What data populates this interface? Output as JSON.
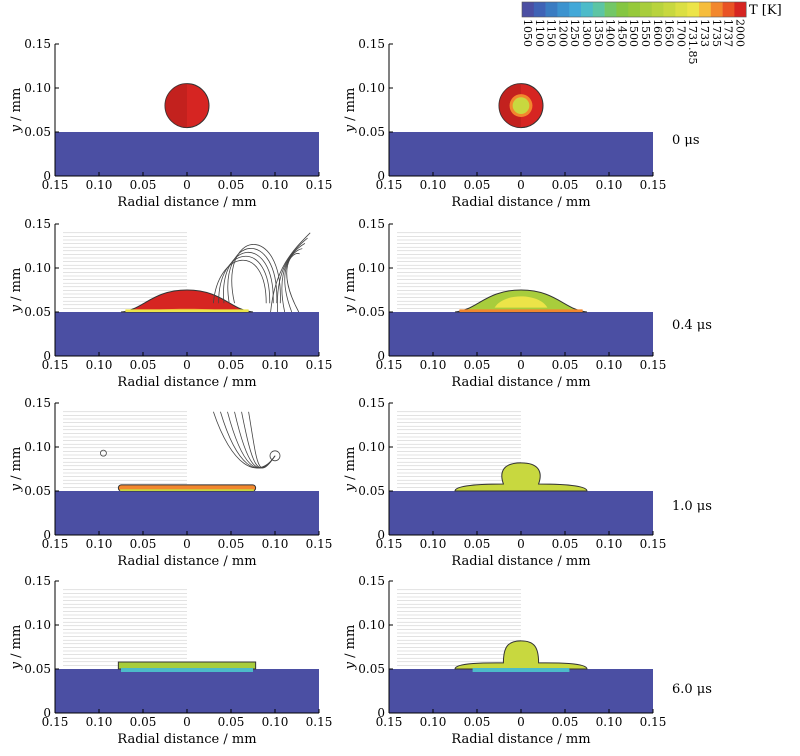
{
  "colorbar": {
    "label": "T [K]",
    "ticks": [
      "1050",
      "1100",
      "1150",
      "1200",
      "1250",
      "1300",
      "1350",
      "1400",
      "1450",
      "1500",
      "1550",
      "1600",
      "1650",
      "1700",
      "1731.85",
      "1733",
      "1735",
      "1737",
      "2000"
    ],
    "colors": [
      "#4b4fa3",
      "#3f63b6",
      "#3a7cc2",
      "#3c93cf",
      "#42a8d8",
      "#4cbbc9",
      "#5cc5a4",
      "#73c766",
      "#85c641",
      "#96c93a",
      "#a8cd3c",
      "#b8d33d",
      "#c8d83f",
      "#dbdf43",
      "#ece448",
      "#f6bd3c",
      "#f2872d",
      "#e95325",
      "#d62522"
    ]
  },
  "axes": {
    "x_ticks": [
      "0.15",
      "0.10",
      "0.05",
      "0",
      "0.05",
      "0.10",
      "0.15"
    ],
    "y_ticks": [
      "0",
      "0.05",
      "0.10",
      "0.15"
    ],
    "xlabel": "Radial distance / mm",
    "ylabel_italic": "y",
    "ylabel_rest": " / mm"
  },
  "panel_colors": {
    "substrate": "#4b4fa3",
    "hot": "#d62522",
    "orange": "#f2872d",
    "yellow": "#ece448",
    "green": "#a8cd3c",
    "lightgreen": "#c8d83f",
    "cyan": "#4cbbc9"
  },
  "rows": [
    {
      "time": "0 μs"
    },
    {
      "time": "0.4 μs"
    },
    {
      "time": "1.0 μs"
    },
    {
      "time": "6.0 μs"
    }
  ]
}
